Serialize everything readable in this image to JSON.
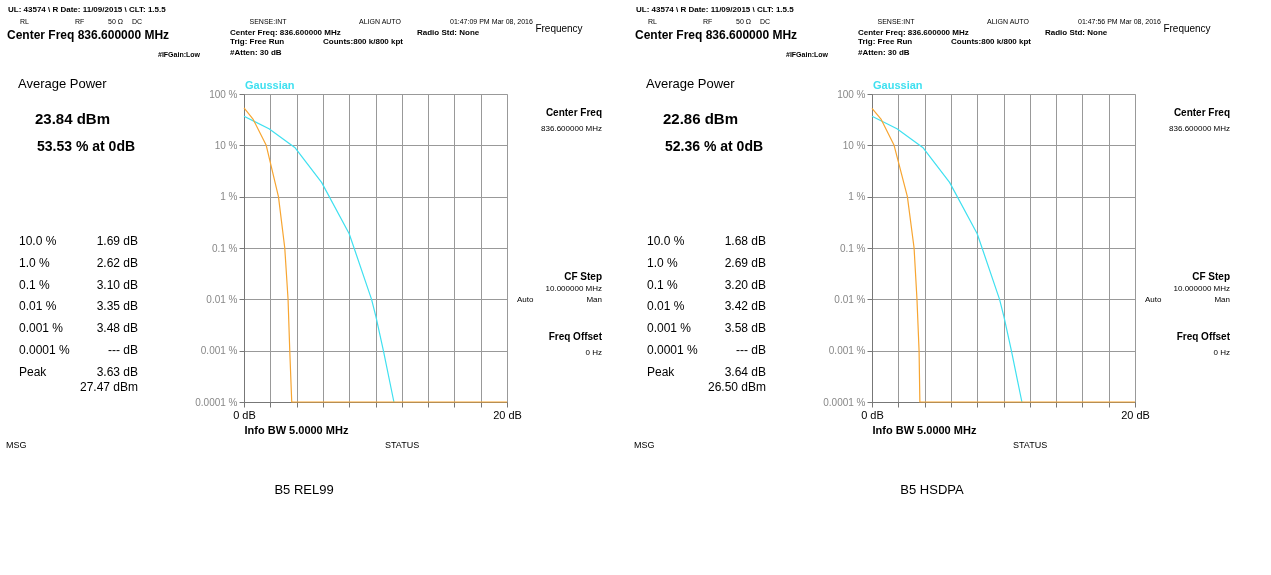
{
  "chart_data": [
    {
      "type": "line",
      "xlabel": "Info BW 5.0000 MHz",
      "xlim": [
        0,
        20
      ],
      "ylim": [
        0.0001,
        100
      ],
      "log": "y",
      "grid": true,
      "line_style": "solid",
      "marker": "none",
      "xticks": [
        {
          "value": 0,
          "label": "0 dB"
        },
        {
          "value": 2,
          "label": null
        },
        {
          "value": 4,
          "label": null
        },
        {
          "value": 6,
          "label": null
        },
        {
          "value": 8,
          "label": null
        },
        {
          "value": 10,
          "label": null
        },
        {
          "value": 12,
          "label": null
        },
        {
          "value": 14,
          "label": null
        },
        {
          "value": 16,
          "label": null
        },
        {
          "value": 18,
          "label": null
        },
        {
          "value": 20,
          "label": "20 dB"
        }
      ],
      "yticks": [
        {
          "value": 100,
          "label": "100 %"
        },
        {
          "value": 10,
          "label": "10 %"
        },
        {
          "value": 1,
          "label": "1 %"
        },
        {
          "value": 0.1,
          "label": "0.1 %"
        },
        {
          "value": 0.01,
          "label": "0.01 %"
        },
        {
          "value": 0.001,
          "label": "0.001 %"
        },
        {
          "value": 0.0001,
          "label": "0.0001 %"
        }
      ],
      "series": [
        {
          "name": "Gaussian",
          "color": "#3fe0f0",
          "x": [
            0,
            1.9,
            3.86,
            5.9,
            8.0,
            9.7,
            10.04,
            10.6,
            11.4
          ],
          "values": [
            36.8,
            21,
            9.1,
            1.9,
            0.19,
            0.01,
            0.0045,
            0.001,
            0.0001
          ]
        },
        {
          "color": "#f7a531",
          "x": [
            0,
            0.7,
            1.69,
            2.62,
            3.1,
            3.35,
            3.48,
            3.63,
            20
          ],
          "values": [
            53.53,
            32,
            10,
            1,
            0.1,
            0.01,
            0.001,
            0.0001,
            0.0001
          ]
        }
      ],
      "annotations": [
        "UL: 43574 \\ R Date: 11/09/2015 \\ CLT: 1.5.5",
        "RL",
        "RF",
        "50 Ω",
        "DC",
        "SENSE:INT",
        "ALIGN AUTO",
        "01:47:09 PM Mar 08, 2016",
        "Center Freq 836.600000 MHz",
        "Center Freq: 836.600000 MHz",
        "Radio Std: None",
        "Trig: Free Run",
        "Counts:800 k/800 kpt",
        "#IFGain:Low",
        "#Atten: 30 dB",
        "Frequency",
        "Center Freq",
        "836.600000 MHz",
        "CF Step",
        "10.000000 MHz",
        "Auto",
        "Man",
        "Freq Offset",
        "0 Hz",
        "Average Power",
        "23.84 dBm",
        "53.53 % at 0dB",
        "10.0 %",
        "1.0 %",
        "0.1 %",
        "0.01 %",
        "0.001 %",
        "0.0001 %",
        "Peak",
        "1.69 dB",
        "2.62 dB",
        "3.10 dB",
        "3.35 dB",
        "3.48 dB",
        "--- dB",
        "3.63 dB",
        "27.47 dBm",
        "MSG",
        "STATUS",
        "B5 REL99"
      ]
    },
    {
      "type": "line",
      "xlabel": "Info BW 5.0000 MHz",
      "xlim": [
        0,
        20
      ],
      "ylim": [
        0.0001,
        100
      ],
      "log": "y",
      "grid": true,
      "line_style": "solid",
      "marker": "none",
      "xticks": [
        {
          "value": 0,
          "label": "0 dB"
        },
        {
          "value": 2,
          "label": null
        },
        {
          "value": 4,
          "label": null
        },
        {
          "value": 6,
          "label": null
        },
        {
          "value": 8,
          "label": null
        },
        {
          "value": 10,
          "label": null
        },
        {
          "value": 12,
          "label": null
        },
        {
          "value": 14,
          "label": null
        },
        {
          "value": 16,
          "label": null
        },
        {
          "value": 18,
          "label": null
        },
        {
          "value": 20,
          "label": "20 dB"
        }
      ],
      "yticks": [
        {
          "value": 100,
          "label": "100 %"
        },
        {
          "value": 10,
          "label": "10 %"
        },
        {
          "value": 1,
          "label": "1 %"
        },
        {
          "value": 0.1,
          "label": "0.1 %"
        },
        {
          "value": 0.01,
          "label": "0.01 %"
        },
        {
          "value": 0.001,
          "label": "0.001 %"
        },
        {
          "value": 0.0001,
          "label": "0.0001 %"
        }
      ],
      "series": [
        {
          "name": "Gaussian",
          "color": "#3fe0f0",
          "x": [
            0,
            1.9,
            3.86,
            5.9,
            8.0,
            9.7,
            10.04,
            10.6,
            11.4
          ],
          "values": [
            36.8,
            21,
            9.1,
            1.9,
            0.19,
            0.01,
            0.0045,
            0.001,
            0.0001
          ]
        },
        {
          "color": "#f7a531",
          "x": [
            0,
            0.7,
            1.68,
            2.69,
            3.2,
            3.42,
            3.58,
            3.64,
            20
          ],
          "values": [
            52.36,
            32,
            10,
            1,
            0.1,
            0.01,
            0.001,
            0.0001,
            0.0001
          ]
        }
      ],
      "annotations": [
        "UL: 43574 \\ R Date: 11/09/2015 \\ CLT: 1.5.5",
        "RL",
        "RF",
        "50 Ω",
        "DC",
        "SENSE:INT",
        "ALIGN AUTO",
        "01:47:56 PM Mar 08, 2016",
        "Center Freq 836.600000 MHz",
        "Center Freq: 836.600000 MHz",
        "Radio Std: None",
        "Trig: Free Run",
        "Counts:800 k/800 kpt",
        "#IFGain:Low",
        "#Atten: 30 dB",
        "Frequency",
        "Center Freq",
        "836.600000 MHz",
        "CF Step",
        "10.000000 MHz",
        "Auto",
        "Man",
        "Freq Offset",
        "0 Hz",
        "Average Power",
        "22.86 dBm",
        "52.36 % at 0dB",
        "10.0 %",
        "1.0 %",
        "0.1 %",
        "0.01 %",
        "0.001 %",
        "0.0001 %",
        "Peak",
        "1.68 dB",
        "2.69 dB",
        "3.20 dB",
        "3.42 dB",
        "3.58 dB",
        "--- dB",
        "3.64 dB",
        "26.50 dBm",
        "MSG",
        "STATUS",
        "B5 HSDPA"
      ]
    }
  ]
}
